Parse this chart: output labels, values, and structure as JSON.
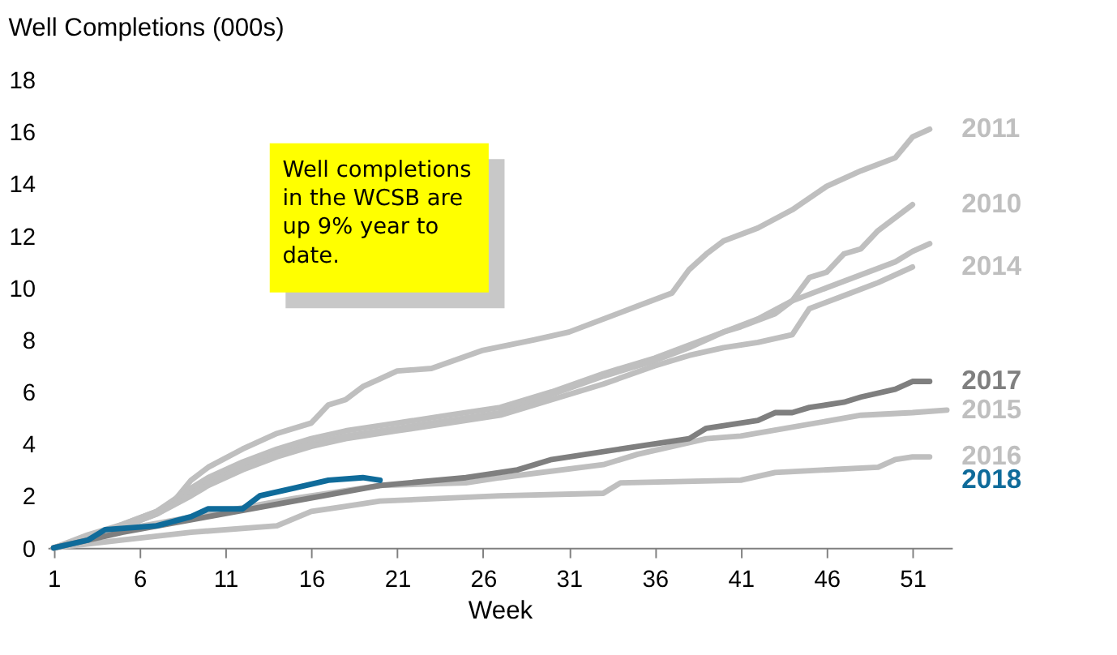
{
  "chart_data": {
    "type": "line",
    "title": "Well Completions (000s)",
    "xlabel": "Week",
    "xlim": [
      0.65,
      53.3
    ],
    "xticks": [
      1,
      6,
      11,
      16,
      21,
      26,
      31,
      36,
      41,
      46,
      51
    ],
    "ylim": [
      0,
      18
    ],
    "yticks": [
      0,
      2,
      4,
      6,
      8,
      10,
      12,
      14,
      16,
      18
    ],
    "grid": false,
    "annotations": [
      "Well completions\nin the WCSB are\nup 9% year to\ndate."
    ],
    "series": [
      {
        "name": "2011",
        "color": "#bfbfbf",
        "x": [
          1,
          3,
          5,
          7,
          8,
          9,
          10,
          12,
          14,
          16,
          17,
          18,
          19,
          20,
          21,
          23,
          26,
          29,
          31,
          35,
          37,
          38,
          39,
          40,
          42,
          44,
          46,
          48,
          50,
          51,
          52
        ],
        "values": [
          0,
          0.5,
          0.9,
          1.4,
          1.8,
          2.6,
          3.1,
          3.8,
          4.4,
          4.8,
          5.5,
          5.7,
          6.2,
          6.5,
          6.8,
          6.9,
          7.6,
          8.0,
          8.3,
          9.3,
          9.8,
          10.7,
          11.3,
          11.8,
          12.3,
          13.0,
          13.9,
          14.5,
          15.0,
          15.8,
          16.1
        ]
      },
      {
        "name": "2010",
        "color": "#bfbfbf",
        "x": [
          1,
          3,
          5,
          7,
          9,
          10,
          12,
          14,
          16,
          18,
          21,
          24,
          27,
          30,
          33,
          36,
          38,
          40,
          41,
          43,
          44,
          45,
          46,
          47,
          48,
          49,
          51
        ],
        "values": [
          0,
          0.4,
          0.9,
          1.4,
          2.3,
          2.7,
          3.3,
          3.8,
          4.2,
          4.5,
          4.8,
          5.1,
          5.4,
          6.0,
          6.7,
          7.3,
          7.8,
          8.3,
          8.5,
          9.0,
          9.5,
          10.4,
          10.6,
          11.3,
          11.5,
          12.2,
          13.2
        ]
      },
      {
        "color": "#bfbfbf",
        "x": [
          1,
          3,
          5,
          7,
          9,
          10,
          12,
          14,
          16,
          18,
          21,
          24,
          27,
          30,
          33,
          36,
          38,
          40,
          42,
          44,
          46,
          48,
          50,
          51,
          52
        ],
        "values": [
          0,
          0.4,
          0.8,
          1.3,
          2.1,
          2.5,
          3.1,
          3.6,
          4.0,
          4.3,
          4.6,
          4.9,
          5.2,
          5.9,
          6.6,
          7.2,
          7.7,
          8.3,
          8.8,
          9.5,
          10.0,
          10.5,
          11.0,
          11.4,
          11.7
        ]
      },
      {
        "name": "2014",
        "color": "#bfbfbf",
        "x": [
          1,
          3,
          5,
          7,
          9,
          10,
          12,
          14,
          16,
          18,
          21,
          24,
          27,
          30,
          33,
          36,
          38,
          40,
          42,
          44,
          45,
          47,
          49,
          51
        ],
        "values": [
          0,
          0.3,
          0.8,
          1.3,
          2.0,
          2.4,
          3.0,
          3.5,
          3.9,
          4.2,
          4.5,
          4.8,
          5.1,
          5.7,
          6.3,
          7.0,
          7.4,
          7.7,
          7.9,
          8.2,
          9.2,
          9.7,
          10.2,
          10.8
        ]
      },
      {
        "name": "2016",
        "color": "#bfbfbf",
        "x": [
          1,
          5,
          9,
          14,
          16,
          18,
          20,
          27,
          33,
          34,
          41,
          43,
          49,
          50,
          51,
          52
        ],
        "values": [
          0,
          0.3,
          0.6,
          0.85,
          1.4,
          1.6,
          1.8,
          2.0,
          2.1,
          2.5,
          2.6,
          2.9,
          3.1,
          3.4,
          3.5,
          3.5
        ]
      },
      {
        "name": "2015",
        "color": "#bfbfbf",
        "x": [
          1,
          5,
          10,
          15,
          20,
          25,
          27,
          33,
          35,
          39,
          41,
          48,
          51,
          53
        ],
        "values": [
          0,
          0.7,
          1.3,
          1.9,
          2.4,
          2.5,
          2.7,
          3.2,
          3.6,
          4.2,
          4.3,
          5.1,
          5.2,
          5.3
        ]
      },
      {
        "name": "2017",
        "color": "#7f7f7f",
        "x": [
          1,
          5,
          10,
          15,
          20,
          25,
          28,
          30,
          34,
          38,
          39,
          42,
          43,
          44,
          45,
          47,
          48,
          50,
          51,
          52
        ],
        "values": [
          0,
          0.6,
          1.2,
          1.8,
          2.4,
          2.7,
          3.0,
          3.4,
          3.8,
          4.2,
          4.6,
          4.9,
          5.2,
          5.2,
          5.4,
          5.6,
          5.8,
          6.1,
          6.4,
          6.4
        ]
      },
      {
        "name": "2018",
        "color": "#0f6b9a",
        "x": [
          1,
          3,
          4,
          7,
          9,
          10,
          12,
          13,
          15,
          17,
          19,
          20
        ],
        "values": [
          0,
          0.3,
          0.7,
          0.85,
          1.2,
          1.5,
          1.5,
          2.0,
          2.3,
          2.6,
          2.7,
          2.6
        ]
      }
    ]
  }
}
